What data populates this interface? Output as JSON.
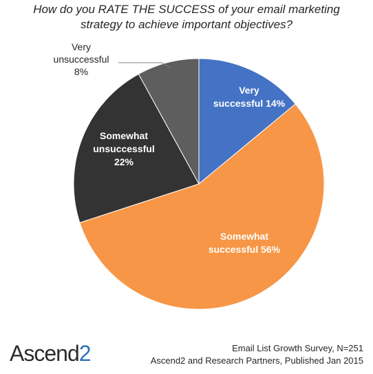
{
  "chart_data": {
    "type": "pie",
    "title_lines": [
      "How do you RATE THE SUCCESS of your email marketing",
      "strategy to achieve important objectives?"
    ],
    "slices": [
      {
        "label_lines": [
          "Very",
          "successful 14%"
        ],
        "value": 14,
        "color": "#4472c4",
        "label_color": "#ffffff"
      },
      {
        "label_lines": [
          "Somewhat",
          "successful 56%"
        ],
        "value": 56,
        "color": "#f79646",
        "label_color": "#ffffff"
      },
      {
        "label_lines": [
          "Somewhat",
          "unsuccessful",
          "22%"
        ],
        "value": 22,
        "color": "#333333",
        "label_color": "#ffffff"
      },
      {
        "label_lines": [
          "Very",
          "unsuccessful",
          "8%"
        ],
        "value": 8,
        "color": "#5e5e5e",
        "label_color": "#262626"
      }
    ]
  },
  "footer": {
    "source_lines": [
      "Email List Growth Survey, N=251",
      "Ascend2 and Research Partners, Published Jan 2015"
    ],
    "logo_main": "Ascend",
    "logo_accent": "2"
  }
}
